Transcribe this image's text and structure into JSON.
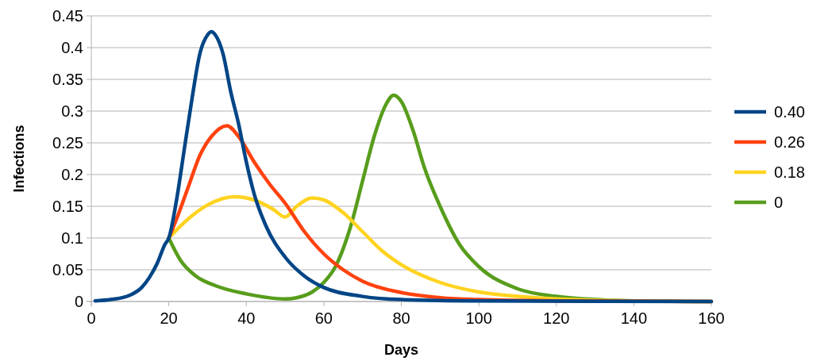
{
  "chart_data": {
    "type": "line",
    "xlabel": "Days",
    "ylabel": "Infections",
    "xlim": [
      0,
      160
    ],
    "xticks": [
      0,
      20,
      40,
      60,
      80,
      100,
      120,
      140,
      160
    ],
    "ylim": [
      0,
      0.45
    ],
    "yticks": [
      0,
      0.05,
      0.1,
      0.15,
      0.2,
      0.25,
      0.3,
      0.35,
      0.4,
      0.45
    ],
    "grid": "y",
    "legend": "right",
    "line_style": "solid",
    "series": [
      {
        "name": "0.40",
        "color": "#004586",
        "x": [
          1,
          5,
          10,
          13,
          15,
          17,
          19,
          20,
          22,
          24,
          26,
          28,
          30,
          31,
          32,
          34,
          36,
          38,
          40,
          42,
          45,
          50,
          55,
          60,
          70,
          80,
          100,
          160
        ],
        "values": [
          0.001,
          0.003,
          0.01,
          0.022,
          0.038,
          0.06,
          0.09,
          0.1,
          0.16,
          0.24,
          0.32,
          0.39,
          0.42,
          0.425,
          0.42,
          0.39,
          0.33,
          0.28,
          0.22,
          0.17,
          0.12,
          0.07,
          0.04,
          0.022,
          0.008,
          0.003,
          0.001,
          0
        ]
      },
      {
        "name": "0.26",
        "color": "#ff420e",
        "x": [
          20,
          22,
          25,
          28,
          31,
          35,
          38,
          42,
          46,
          50,
          55,
          60,
          65,
          70,
          80,
          90,
          100,
          120,
          160
        ],
        "values": [
          0.1,
          0.13,
          0.18,
          0.23,
          0.26,
          0.277,
          0.26,
          0.22,
          0.185,
          0.155,
          0.11,
          0.075,
          0.05,
          0.032,
          0.014,
          0.006,
          0.003,
          0.001,
          0
        ]
      },
      {
        "name": "0.18",
        "color": "#ffd320",
        "x": [
          20,
          25,
          30,
          37,
          42,
          47,
          50,
          53,
          57,
          60,
          65,
          70,
          75,
          80,
          90,
          100,
          110,
          120,
          140,
          160
        ],
        "values": [
          0.1,
          0.13,
          0.152,
          0.165,
          0.16,
          0.145,
          0.133,
          0.15,
          0.163,
          0.16,
          0.14,
          0.11,
          0.08,
          0.058,
          0.03,
          0.015,
          0.008,
          0.004,
          0.001,
          0
        ]
      },
      {
        "name": "0",
        "color": "#579d1c",
        "x": [
          20,
          23,
          27,
          32,
          40,
          50,
          53,
          57,
          60,
          63,
          67,
          70,
          73,
          76,
          78,
          80,
          83,
          86,
          90,
          95,
          100,
          110,
          120,
          130,
          140,
          160
        ],
        "values": [
          0.1,
          0.065,
          0.04,
          0.025,
          0.012,
          0.004,
          0.006,
          0.015,
          0.03,
          0.055,
          0.12,
          0.19,
          0.26,
          0.31,
          0.325,
          0.315,
          0.27,
          0.21,
          0.15,
          0.09,
          0.055,
          0.02,
          0.008,
          0.003,
          0.001,
          0
        ]
      }
    ]
  }
}
